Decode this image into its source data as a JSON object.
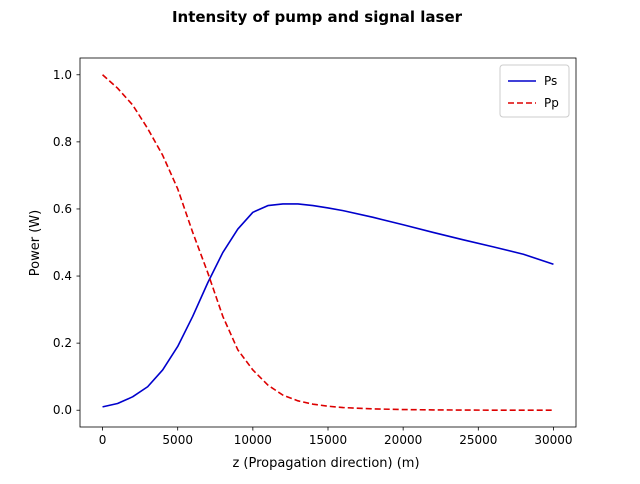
{
  "chart_data": {
    "type": "line",
    "title": "Intensity of pump and signal laser",
    "xlabel": "z (Propagation direction) (m)",
    "ylabel": "Power (W)",
    "xlim": [
      -1500,
      31500
    ],
    "ylim": [
      -0.05,
      1.05
    ],
    "xticks": [
      0,
      5000,
      10000,
      15000,
      20000,
      25000,
      30000
    ],
    "xtick_labels": [
      "0",
      "5000",
      "10000",
      "15000",
      "20000",
      "25000",
      "30000"
    ],
    "yticks": [
      0.0,
      0.2,
      0.4,
      0.6,
      0.8,
      1.0
    ],
    "ytick_labels": [
      "0.0",
      "0.2",
      "0.4",
      "0.6",
      "0.8",
      "1.0"
    ],
    "grid": false,
    "legend_position": "top-right",
    "series": [
      {
        "name": "Ps",
        "color": "#0000cc",
        "line_style": "solid",
        "x": [
          0,
          1000,
          2000,
          3000,
          4000,
          5000,
          6000,
          7000,
          8000,
          9000,
          10000,
          11000,
          12000,
          13000,
          14000,
          15000,
          16000,
          18000,
          20000,
          22000,
          24000,
          26000,
          28000,
          30000
        ],
        "y": [
          0.01,
          0.02,
          0.04,
          0.07,
          0.12,
          0.19,
          0.28,
          0.38,
          0.47,
          0.54,
          0.59,
          0.61,
          0.615,
          0.615,
          0.61,
          0.603,
          0.595,
          0.575,
          0.553,
          0.53,
          0.508,
          0.487,
          0.465,
          0.435
        ]
      },
      {
        "name": "Pp",
        "color": "#dd0000",
        "line_style": "dashed",
        "x": [
          0,
          1000,
          2000,
          3000,
          4000,
          5000,
          6000,
          7000,
          8000,
          9000,
          10000,
          11000,
          12000,
          13000,
          14000,
          15000,
          16000,
          18000,
          20000,
          22000,
          24000,
          26000,
          28000,
          30000
        ],
        "y": [
          1.0,
          0.96,
          0.91,
          0.84,
          0.76,
          0.66,
          0.53,
          0.41,
          0.28,
          0.18,
          0.12,
          0.075,
          0.045,
          0.028,
          0.018,
          0.012,
          0.008,
          0.004,
          0.002,
          0.001,
          0.0005,
          0.0002,
          0.0001,
          0.0
        ]
      }
    ]
  }
}
